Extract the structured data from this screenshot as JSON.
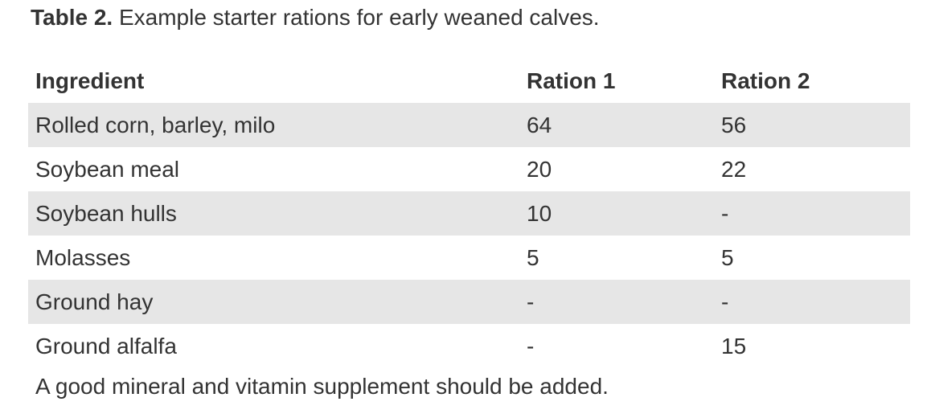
{
  "caption": {
    "label": "Table 2.",
    "text": "Example starter rations for early weaned calves."
  },
  "table": {
    "headers": [
      "Ingredient",
      "Ration 1",
      "Ration 2"
    ],
    "rows": [
      [
        "Rolled corn, barley, milo",
        64,
        56
      ],
      [
        "Soybean meal",
        20,
        22
      ],
      [
        "Soybean hulls",
        10,
        "-"
      ],
      [
        "Molasses",
        5,
        5
      ],
      [
        "Ground hay",
        "-",
        "-"
      ],
      [
        "Ground alfalfa",
        "-",
        15
      ]
    ],
    "footnote": "A good mineral and vitamin supplement should be added."
  }
}
